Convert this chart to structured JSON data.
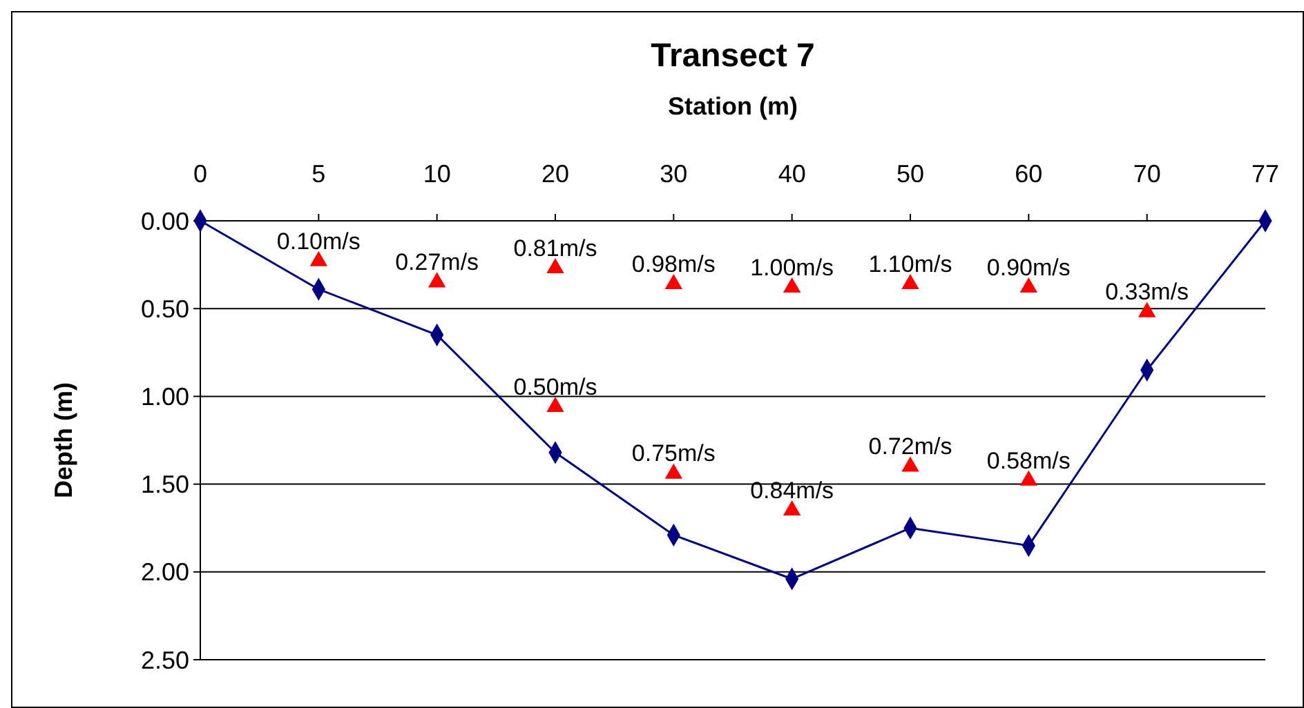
{
  "chart_data": {
    "type": "line",
    "title": "Transect 7",
    "xlabel": "Station (m)",
    "ylabel": "Depth (m)",
    "categories": [
      "0",
      "5",
      "10",
      "20",
      "30",
      "40",
      "50",
      "60",
      "70",
      "77"
    ],
    "ylim": [
      2.5,
      0
    ],
    "yticks": [
      {
        "value": 0,
        "label": "0.00"
      },
      {
        "value": 0.5,
        "label": "0.50"
      },
      {
        "value": 1,
        "label": "1.00"
      },
      {
        "value": 1.5,
        "label": "1.50"
      },
      {
        "value": 2,
        "label": "2.00"
      },
      {
        "value": 2.5,
        "label": "2.50"
      }
    ],
    "grid": "y",
    "series": [
      {
        "color": "#000080",
        "marker": "diamond",
        "line_style": "solid",
        "values": [
          0,
          0.39,
          0.65,
          1.32,
          1.79,
          2.04,
          1.75,
          1.85,
          0.85,
          0
        ]
      },
      {
        "type": "scatter",
        "color": "#ff0000",
        "marker": "triangle",
        "values": [
          null,
          0.23,
          0.35,
          0.27,
          0.36,
          0.38,
          0.36,
          0.38,
          0.52,
          null
        ]
      },
      {
        "type": "scatter",
        "color": "#ff0000",
        "marker": "triangle",
        "values": [
          null,
          null,
          null,
          1.06,
          1.44,
          1.65,
          1.4,
          1.48,
          null,
          null
        ]
      }
    ],
    "annotations": [
      {
        "text": "0.10m/s",
        "x": "5",
        "y": 0.23
      },
      {
        "text": "0.27m/s",
        "x": "10",
        "y": 0.35
      },
      {
        "text": "0.81m/s",
        "x": "20",
        "y": 0.27
      },
      {
        "text": "0.98m/s",
        "x": "30",
        "y": 0.36
      },
      {
        "text": "1.00m/s",
        "x": "40",
        "y": 0.38
      },
      {
        "text": "1.10m/s",
        "x": "50",
        "y": 0.36
      },
      {
        "text": "0.90m/s",
        "x": "60",
        "y": 0.38
      },
      {
        "text": "0.33m/s",
        "x": "70",
        "y": 0.52
      },
      {
        "text": "0.50m/s",
        "x": "20",
        "y": 1.06
      },
      {
        "text": "0.75m/s",
        "x": "30",
        "y": 1.44
      },
      {
        "text": "0.84m/s",
        "x": "40",
        "y": 1.65
      },
      {
        "text": "0.72m/s",
        "x": "50",
        "y": 1.4
      },
      {
        "text": "0.58m/s",
        "x": "60",
        "y": 1.48
      }
    ]
  }
}
